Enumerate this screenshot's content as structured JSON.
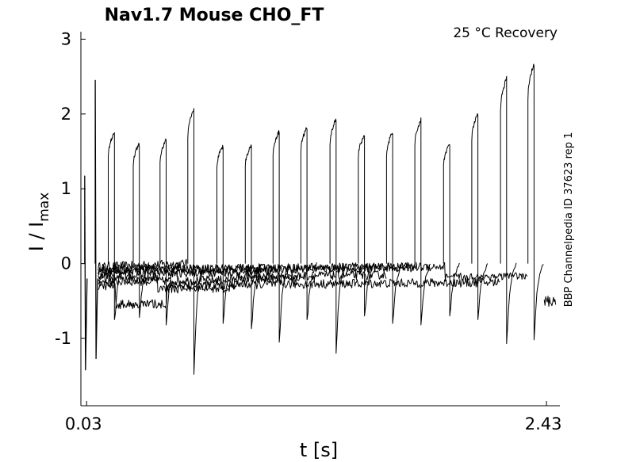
{
  "chart_data": {
    "type": "line",
    "title": "Nav1.7  Mouse  CHO_FT",
    "annotation": "25 °C  Recovery",
    "side_label": "BBP Channelpedia ID 37623 rep 1",
    "xlabel": "t [s]",
    "ylabel": "I / I",
    "ylabel_sub": "max",
    "x_ticks": [
      {
        "value": 0.03,
        "label": "0.03"
      },
      {
        "value": 2.43,
        "label": "2.43"
      }
    ],
    "y_ticks": [
      {
        "value": -1,
        "label": "-1"
      },
      {
        "value": 0,
        "label": "0"
      },
      {
        "value": 1,
        "label": "1"
      },
      {
        "value": 2,
        "label": "2"
      },
      {
        "value": 3,
        "label": "3"
      }
    ],
    "xlim": [
      0.0,
      2.5
    ],
    "ylim": [
      -1.9,
      3.1
    ],
    "grid": false,
    "line_color": "#000000",
    "initial_spikes": [
      {
        "t": 0.02,
        "peak": 1.17,
        "trough": -1.42
      },
      {
        "t": 0.075,
        "peak": 2.45,
        "trough": -1.27
      }
    ],
    "recovery_pulses": [
      {
        "t": 0.143,
        "peak": 1.75,
        "trough": -0.75
      },
      {
        "t": 0.273,
        "peak": 1.6,
        "trough": -0.72
      },
      {
        "t": 0.413,
        "peak": 1.65,
        "trough": -0.82
      },
      {
        "t": 0.558,
        "peak": 2.05,
        "trough": -1.48
      },
      {
        "t": 0.71,
        "peak": 1.57,
        "trough": -0.8
      },
      {
        "t": 0.858,
        "peak": 1.58,
        "trough": -0.87
      },
      {
        "t": 1.003,
        "peak": 1.77,
        "trough": -1.05
      },
      {
        "t": 1.148,
        "peak": 1.82,
        "trough": -0.75
      },
      {
        "t": 1.3,
        "peak": 1.93,
        "trough": -1.2
      },
      {
        "t": 1.448,
        "peak": 1.72,
        "trough": -0.7
      },
      {
        "t": 1.595,
        "peak": 1.75,
        "trough": -0.8
      },
      {
        "t": 1.743,
        "peak": 1.92,
        "trough": -0.82
      },
      {
        "t": 1.893,
        "peak": 1.6,
        "trough": -0.7
      },
      {
        "t": 2.04,
        "peak": 2.0,
        "trough": -0.75
      },
      {
        "t": 2.19,
        "peak": 2.48,
        "trough": -1.07
      },
      {
        "t": 2.333,
        "peak": 2.67,
        "trough": -1.02
      }
    ]
  }
}
